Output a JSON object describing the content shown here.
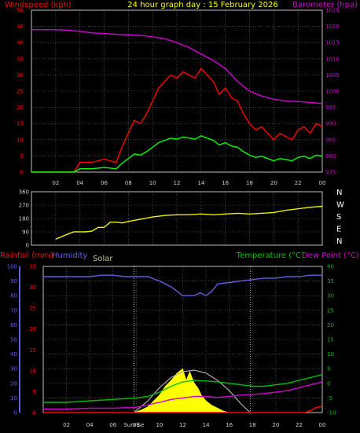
{
  "header": {
    "left_title": "Windspeed (kph)",
    "center_title": "24 hour graph day : 15 February 2026",
    "right_title": "Barometer (hpa)"
  },
  "colors": {
    "background": "#000000",
    "grid": "#6e6e6e",
    "frame": "#c0c0c0",
    "windspeed": "#ff0000",
    "windspeed_avg": "#00ff00",
    "barometer": "#d000d0",
    "wind_direction": "#f0f000",
    "humidity": "#6060e0",
    "temperature": "#00c000",
    "dew_point": "#d000d0",
    "rainfall": "#ff0000",
    "solar": "#ffff00",
    "solar_max": "#b0b0b0",
    "solar_label": "#c8c890",
    "tick_text": "#d0d0d0",
    "direction_text": "#ffffff"
  },
  "bottom_labels": {
    "rainfall": "Rainfall (mm)",
    "humidity": "Humidity",
    "solar": "Solar",
    "temperature": "Temperature (°C)",
    "dew_point": "Dew Point (°C)",
    "sunrise": "Sunrise"
  },
  "chart_data": [
    {
      "type": "line",
      "title": "24 hour graph day : 15 February 2026",
      "ylabel": "Windspeed (kph)",
      "y2label": "Barometer (hpa)",
      "x_ticks": [
        "02",
        "04",
        "06",
        "08",
        "10",
        "12",
        "14",
        "16",
        "18",
        "20",
        "22",
        "00"
      ],
      "y_ticks": [
        "0",
        "5",
        "10",
        "15",
        "20",
        "25",
        "30",
        "35",
        "40",
        "45",
        "50"
      ],
      "y2_ticks": [
        "975",
        "980",
        "985",
        "990",
        "995",
        "1000",
        "1005",
        "1010",
        "1015",
        "1020",
        "1025"
      ],
      "xlim": [
        0,
        24
      ],
      "ylim": [
        0,
        50
      ],
      "y2lim": [
        975,
        1025
      ],
      "grid": true,
      "series": [
        {
          "name": "Windspeed (kph)",
          "axis": "left",
          "x": [
            0,
            2,
            3.5,
            4,
            5,
            6,
            7,
            7.5,
            8,
            8.5,
            9,
            9.5,
            10,
            10.5,
            11,
            11.5,
            12,
            12.5,
            13,
            13.5,
            14,
            14.5,
            15,
            15.5,
            16,
            16.5,
            17,
            17.5,
            18,
            18.5,
            19,
            19.5,
            20,
            20.5,
            21,
            21.5,
            22,
            22.5,
            23,
            23.5,
            24
          ],
          "y": [
            0,
            0,
            0,
            3,
            3,
            4,
            3,
            8,
            12,
            16,
            15,
            18,
            22,
            26,
            28,
            30,
            29,
            31,
            30,
            29,
            32,
            30,
            28,
            24,
            26,
            23,
            22,
            18,
            15,
            13,
            14,
            12,
            10,
            12,
            11,
            10,
            13,
            14,
            12,
            15,
            14
          ]
        },
        {
          "name": "Barometer (hpa)",
          "axis": "right",
          "x": [
            0,
            1,
            2,
            3,
            4,
            5,
            6,
            7,
            8,
            9,
            10,
            11,
            12,
            13,
            14,
            15,
            16,
            17,
            18,
            19,
            20,
            21,
            22,
            23,
            24
          ],
          "y": [
            1019,
            1019,
            1019,
            1018.8,
            1018.5,
            1018,
            1017.8,
            1017.6,
            1017.4,
            1017.2,
            1016.8,
            1016.2,
            1015,
            1013.5,
            1011.5,
            1009.5,
            1007,
            1003,
            1000,
            998.5,
            997.5,
            997,
            996.8,
            996.5,
            996.2
          ]
        }
      ]
    },
    {
      "type": "line",
      "ylabel": "Wind direction",
      "y_ticks": [
        "0",
        "90",
        "180",
        "270",
        "360"
      ],
      "direction_labels": [
        "N",
        "W",
        "S",
        "E",
        "N"
      ],
      "xlim": [
        0,
        24
      ],
      "ylim": [
        0,
        360
      ],
      "grid": true,
      "series": [
        {
          "name": "Wind direction",
          "x": [
            2,
            3,
            3.5,
            4,
            4.5,
            5,
            5.5,
            6,
            6.5,
            7,
            7.5,
            8,
            9,
            10,
            11,
            12,
            13,
            14,
            15,
            16,
            17,
            18,
            19,
            20,
            21,
            22,
            23,
            24
          ],
          "y": [
            40,
            75,
            90,
            90,
            90,
            95,
            120,
            120,
            155,
            155,
            150,
            160,
            175,
            190,
            200,
            205,
            205,
            210,
            205,
            210,
            215,
            210,
            215,
            220,
            235,
            245,
            255,
            262
          ]
        }
      ]
    },
    {
      "type": "line",
      "ylabel": "Rainfall (mm)",
      "y2label": "Temperature (°C) / Dew Point (°C)",
      "y_ticks_left_outer": [
        "0",
        "10",
        "20",
        "30",
        "40",
        "50",
        "60",
        "70",
        "80",
        "90",
        "100"
      ],
      "y_ticks_left_inner": [
        "0",
        "5",
        "10",
        "15",
        "20",
        "25",
        "30",
        "35"
      ],
      "y2_ticks": [
        "-10",
        "-5",
        "0",
        "5",
        "10",
        "15",
        "20",
        "25",
        "30",
        "35",
        "40"
      ],
      "x_ticks": [
        "02",
        "04",
        "06",
        "08",
        "10",
        "12",
        "14",
        "16",
        "18",
        "20",
        "22",
        "00"
      ],
      "xlim": [
        0,
        24
      ],
      "grid": true,
      "series": [
        {
          "name": "Humidity",
          "axis": "outer-left",
          "x": [
            0,
            1,
            2,
            3,
            4,
            5,
            6,
            7,
            8,
            9,
            10,
            10.5,
            11,
            11.5,
            12,
            12.5,
            13,
            13.5,
            14,
            14.5,
            15,
            16,
            17,
            18,
            19,
            20,
            21,
            22,
            23,
            24
          ],
          "y": [
            93,
            93,
            93,
            93,
            93,
            94,
            94,
            93,
            93,
            93,
            90,
            88,
            86,
            83,
            80,
            80,
            80,
            82,
            80,
            83,
            88,
            89,
            90,
            91,
            92,
            92,
            93,
            93,
            94,
            94
          ]
        },
        {
          "name": "Temperature (°C)",
          "axis": "right",
          "x": [
            0,
            2,
            4,
            6,
            8,
            9,
            10,
            11,
            12,
            13,
            14,
            15,
            16,
            17,
            18,
            19,
            20,
            21,
            22,
            23,
            24
          ],
          "y": [
            -6.5,
            -6.5,
            -6,
            -5.5,
            -5,
            -4.5,
            -3,
            -1,
            0.5,
            1,
            0.8,
            0.5,
            0,
            -0.5,
            -1,
            -1,
            -0.5,
            0,
            1,
            2,
            3
          ]
        },
        {
          "name": "Dew Point (°C)",
          "axis": "right",
          "x": [
            0,
            2,
            4,
            6,
            8,
            10,
            11,
            12,
            13,
            14,
            15,
            16,
            17,
            18,
            19,
            20,
            21,
            22,
            23,
            24
          ],
          "y": [
            -8.8,
            -8.8,
            -8.5,
            -8.5,
            -8.2,
            -6.5,
            -5.5,
            -5,
            -4.5,
            -4.5,
            -4.8,
            -4.5,
            -4,
            -3.8,
            -3.5,
            -3,
            -2.5,
            -1.5,
            -0.5,
            0.5
          ]
        },
        {
          "name": "Rainfall (mm)",
          "axis": "inner-left",
          "x": [
            0,
            22.5,
            23,
            23.5,
            24
          ],
          "y": [
            0,
            0,
            0.5,
            1.2,
            1.5
          ]
        },
        {
          "name": "Solar",
          "axis": "outer-left",
          "x": [
            7.8,
            8.5,
            9,
            9.5,
            10,
            10.5,
            11,
            11.5,
            12,
            12.3,
            12.6,
            13,
            13.3,
            13.6,
            14,
            14.5,
            15,
            15.5,
            16
          ],
          "y": [
            0,
            2,
            4,
            8,
            12,
            18,
            22,
            27,
            30,
            22,
            28,
            20,
            17,
            12,
            8,
            5,
            3,
            1,
            0
          ]
        },
        {
          "name": "Solar max",
          "axis": "outer-left",
          "x": [
            7.8,
            9,
            10,
            11,
            12,
            13,
            14,
            15,
            16,
            17,
            17.8
          ],
          "y": [
            0,
            8,
            17,
            24,
            28,
            29,
            27,
            22,
            15,
            6,
            0
          ]
        }
      ]
    }
  ]
}
